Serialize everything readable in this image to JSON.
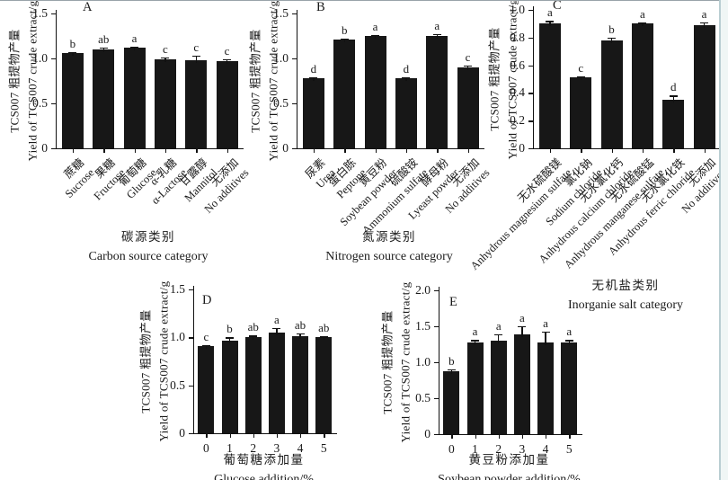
{
  "figure": {
    "background": "#ffffff",
    "bar_color": "#171717",
    "axis_color": "#111111",
    "text_color": "#1a1a1a",
    "top_border_color": "#99a3a9",
    "right_border_color": "#b9ced2",
    "right_margin_color": "#f0f6f5"
  },
  "chart_data": [
    {
      "id": "A",
      "panel_label": "A",
      "type": "bar",
      "ylabel_zh": "TCS007 粗提物产量",
      "ylabel_en": "Yield of TCS007 crude extract/g",
      "ylim": [
        0,
        1.5
      ],
      "yticks": [
        {
          "v": 0,
          "label": "0"
        },
        {
          "v": 0.5,
          "label": "0.5"
        },
        {
          "v": 1.0,
          "label": "1.0"
        },
        {
          "v": 1.5,
          "label": "1.5"
        }
      ],
      "xlabel_zh": "碳源类别",
      "xlabel_en": "Carbon source category",
      "categories": [
        {
          "zh": "蔗糖",
          "en": "Sucrose"
        },
        {
          "zh": "果糖",
          "en": "Fructose"
        },
        {
          "zh": "葡萄糖",
          "en": "Glucose"
        },
        {
          "zh": "α-乳糖",
          "en": "α-Lactose"
        },
        {
          "zh": "甘露醇",
          "en": "Mannitol"
        },
        {
          "zh": "无添加",
          "en": "No additives"
        }
      ],
      "values": [
        1.06,
        1.1,
        1.12,
        0.99,
        0.98,
        0.97
      ],
      "errors": [
        0.01,
        0.02,
        0.01,
        0.02,
        0.05,
        0.02
      ],
      "letters": [
        "b",
        "ab",
        "a",
        "c",
        "c",
        "c"
      ]
    },
    {
      "id": "B",
      "panel_label": "B",
      "type": "bar",
      "ylabel_zh": "TCS007 粗提物产量",
      "ylabel_en": "Yield of TCS007 crude extract/g",
      "ylim": [
        0,
        1.5
      ],
      "yticks": [
        {
          "v": 0,
          "label": "0"
        },
        {
          "v": 0.5,
          "label": "0.5"
        },
        {
          "v": 1.0,
          "label": "1.0"
        },
        {
          "v": 1.5,
          "label": "1.5"
        }
      ],
      "xlabel_zh": "氮源类别",
      "xlabel_en": "Nitrogen source category",
      "categories": [
        {
          "zh": "尿素",
          "en": "Urea"
        },
        {
          "zh": "蛋白胨",
          "en": "Peptone"
        },
        {
          "zh": "黄豆粉",
          "en": "Soybean powder"
        },
        {
          "zh": "硫酸铵",
          "en": "Ammonium sulfate"
        },
        {
          "zh": "酵母粉",
          "en": "Lyeast powder"
        },
        {
          "zh": "无添加",
          "en": "No additives"
        }
      ],
      "values": [
        0.78,
        1.21,
        1.25,
        0.78,
        1.25,
        0.9
      ],
      "errors": [
        0.01,
        0.01,
        0.01,
        0.01,
        0.02,
        0.02
      ],
      "letters": [
        "d",
        "b",
        "a",
        "d",
        "a",
        "c"
      ]
    },
    {
      "id": "C",
      "panel_label": "C",
      "type": "bar",
      "ylabel_zh": "TCS007 粗提物产量",
      "ylabel_en": "Yield of TCS007 crude extract/g",
      "ylim": [
        0,
        1.0
      ],
      "yticks": [
        {
          "v": 0,
          "label": "0"
        },
        {
          "v": 0.2,
          "label": "0.2"
        },
        {
          "v": 0.4,
          "label": "0.4"
        },
        {
          "v": 0.6,
          "label": "0.6"
        },
        {
          "v": 0.8,
          "label": "0.8"
        },
        {
          "v": 1.0,
          "label": "1.0"
        }
      ],
      "xlabel_zh": "无机盐类别",
      "xlabel_en": "Inorganie salt category",
      "categories": [
        {
          "zh": "无水硫酸镁",
          "en": "Anhydrous magnesium sulfate"
        },
        {
          "zh": "氯化钠",
          "en": "Sodium chloride"
        },
        {
          "zh": "无水氯化钙",
          "en": "Anhydrous calcium chloride"
        },
        {
          "zh": "无水硫酸锰",
          "en": "Anhydrous manganese sulfate"
        },
        {
          "zh": "无水氯化铁",
          "en": "Anhydrous ferric chloride"
        },
        {
          "zh": "无添加",
          "en": "No additives"
        }
      ],
      "values": [
        0.9,
        0.51,
        0.78,
        0.9,
        0.35,
        0.89
      ],
      "errors": [
        0.02,
        0.01,
        0.02,
        0.01,
        0.03,
        0.02
      ],
      "letters": [
        "a",
        "c",
        "b",
        "a",
        "d",
        "a"
      ]
    },
    {
      "id": "D",
      "panel_label": "D",
      "type": "bar",
      "ylabel_zh": "TCS007 粗提物产量",
      "ylabel_en": "Yield of TCS007 crude extract/g",
      "ylim": [
        0,
        1.5
      ],
      "yticks": [
        {
          "v": 0,
          "label": "0"
        },
        {
          "v": 0.5,
          "label": "0.5"
        },
        {
          "v": 1.0,
          "label": "1.0"
        },
        {
          "v": 1.5,
          "label": "1.5"
        }
      ],
      "xlabel_zh": "葡萄糖添加量",
      "xlabel_en": "Glucose addition/%",
      "categories": [
        "0",
        "1",
        "2",
        "3",
        "4",
        "5"
      ],
      "values": [
        0.91,
        0.97,
        1.0,
        1.05,
        1.01,
        1.0
      ],
      "errors": [
        0.01,
        0.03,
        0.02,
        0.05,
        0.03,
        0.01
      ],
      "letters": [
        "c",
        "b",
        "ab",
        "a",
        "ab",
        "ab"
      ]
    },
    {
      "id": "E",
      "panel_label": "E",
      "type": "bar",
      "ylabel_zh": "TCS007 粗提物产量",
      "ylabel_en": "Yield of TCS007 crude extract/g",
      "ylim": [
        0,
        2.0
      ],
      "yticks": [
        {
          "v": 0,
          "label": "0"
        },
        {
          "v": 0.5,
          "label": "0.5"
        },
        {
          "v": 1.0,
          "label": "1.0"
        },
        {
          "v": 1.5,
          "label": "1.5"
        },
        {
          "v": 2.0,
          "label": "2.0"
        }
      ],
      "xlabel_zh": "黄豆粉添加量",
      "xlabel_en": "Soybean powder addition/%",
      "categories": [
        "0",
        "1",
        "2",
        "3",
        "4",
        "5"
      ],
      "values": [
        0.87,
        1.28,
        1.3,
        1.39,
        1.28,
        1.27
      ],
      "errors": [
        0.03,
        0.03,
        0.09,
        0.11,
        0.15,
        0.04
      ],
      "letters": [
        "b",
        "a",
        "a",
        "a",
        "a",
        "a"
      ]
    }
  ]
}
